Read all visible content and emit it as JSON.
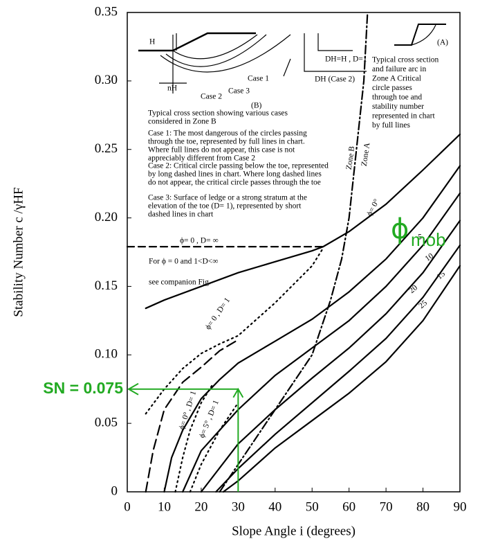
{
  "chart_data": {
    "type": "line",
    "x_label": "Slope Angle i (degrees)",
    "y_label": "Stability Number c /γHF",
    "xlim": [
      0,
      90
    ],
    "ylim": [
      0,
      0.35
    ],
    "xticks": [
      0,
      10,
      20,
      30,
      40,
      50,
      60,
      70,
      80,
      90
    ],
    "yticks": [
      0,
      0.05,
      {
        "value": 0.1,
        "label": "0.10"
      },
      0.15,
      {
        "value": 0.2,
        "label": "0.20"
      },
      0.25,
      {
        "value": 0.3,
        "label": "0.30"
      },
      0.35
    ],
    "grid": false,
    "series": [
      {
        "name": "ϕ= 0°",
        "color": "#000000",
        "dash": "solid",
        "x": [
          5,
          10,
          20,
          30,
          40,
          50,
          53,
          60,
          70,
          80,
          90
        ],
        "values": [
          0.134,
          0.14,
          0.15,
          0.16,
          0.168,
          0.176,
          0.179,
          0.19,
          0.21,
          0.235,
          0.261
        ]
      },
      {
        "name": "5",
        "color": "#000000",
        "dash": "solid",
        "x": [
          10,
          12,
          15,
          20,
          25,
          30,
          40,
          50,
          60,
          70,
          80,
          90
        ],
        "values": [
          0,
          0.025,
          0.045,
          0.068,
          0.082,
          0.094,
          0.11,
          0.126,
          0.146,
          0.17,
          0.2,
          0.238
        ]
      },
      {
        "name": "10",
        "color": "#000000",
        "dash": "solid",
        "x": [
          15,
          20,
          30,
          40,
          50,
          60,
          70,
          80,
          90
        ],
        "values": [
          0,
          0.03,
          0.06,
          0.085,
          0.105,
          0.125,
          0.15,
          0.18,
          0.218
        ]
      },
      {
        "name": "15",
        "color": "#000000",
        "dash": "solid",
        "x": [
          20,
          30,
          40,
          50,
          60,
          70,
          80,
          90
        ],
        "values": [
          0,
          0.035,
          0.06,
          0.083,
          0.105,
          0.13,
          0.16,
          0.198
        ]
      },
      {
        "name": "20",
        "color": "#000000",
        "dash": "solid",
        "x": [
          24,
          30,
          40,
          50,
          60,
          70,
          80,
          90
        ],
        "values": [
          0,
          0.017,
          0.042,
          0.065,
          0.088,
          0.112,
          0.142,
          0.18
        ]
      },
      {
        "name": "25",
        "color": "#000000",
        "dash": "solid",
        "x": [
          26,
          30,
          40,
          50,
          60,
          70,
          80,
          90
        ],
        "values": [
          0,
          0.008,
          0.032,
          0.052,
          0.072,
          0.095,
          0.125,
          0.165
        ]
      },
      {
        "color": "#000000",
        "dash": "dashed",
        "x": [
          0,
          53
        ],
        "values": [
          0.179,
          0.179
        ]
      },
      {
        "color": "#000000",
        "dash": "dotted",
        "x": [
          5,
          10,
          15,
          20,
          25,
          30,
          40,
          50,
          53
        ],
        "values": [
          0.057,
          0.075,
          0.09,
          0.101,
          0.108,
          0.114,
          0.138,
          0.165,
          0.178
        ]
      },
      {
        "color": "#000000",
        "dash": "longdash",
        "x": [
          5,
          7,
          10,
          15,
          20,
          25,
          30
        ],
        "values": [
          0,
          0.03,
          0.06,
          0.08,
          0.091,
          0.103,
          0.111
        ]
      },
      {
        "color": "#000000",
        "dash": "dotted",
        "x": [
          13,
          15,
          17,
          20,
          23
        ],
        "values": [
          0,
          0.025,
          0.045,
          0.065,
          0.078
        ]
      },
      {
        "color": "#000000",
        "dash": "dotted",
        "x": [
          17,
          20,
          25,
          30
        ],
        "values": [
          0,
          0.02,
          0.045,
          0.065
        ]
      },
      {
        "color": "#000000",
        "dash": "dashdot",
        "x": [
          25,
          30,
          40,
          50,
          55,
          58,
          60,
          62,
          64,
          65
        ],
        "values": [
          0,
          0.02,
          0.06,
          0.1,
          0.14,
          0.17,
          0.2,
          0.25,
          0.3,
          0.35
        ]
      }
    ],
    "marker": {
      "x": 30,
      "value": 0.075,
      "label": "SN = 0.075",
      "color": "#22aa22",
      "symbol": "ϕ",
      "subscript": "mob"
    },
    "annotations": [
      {
        "lines": [
          "(A)"
        ]
      },
      {
        "lines": [
          "Typical cross section",
          "and failure arc in",
          "Zone A Critical",
          "circle passes",
          "through toe and",
          "stability number",
          "represented in chart",
          "by full lines"
        ]
      },
      {
        "lines": [
          "H"
        ]
      },
      {
        "lines": [
          "nH"
        ]
      },
      {
        "lines": [
          "DH=H , D=1"
        ]
      },
      {
        "lines": [
          "DH (Case 2)"
        ]
      },
      {
        "lines": [
          "Case 1"
        ]
      },
      {
        "lines": [
          "Case 2"
        ]
      },
      {
        "lines": [
          "Case 3"
        ]
      },
      {
        "lines": [
          "(B)"
        ]
      },
      {
        "lines": [
          "Typical cross section showing various cases",
          "considered in Zone B"
        ]
      },
      {
        "lines": [
          "Case 1: The most dangerous of the circles passing",
          "through the toe, represented by full lines in chart.",
          "Where full lines do not appear, this case is not",
          "appreciably different from Case 2"
        ]
      },
      {
        "lines": [
          "Case 2: Critical circle passing below the toe, represented",
          "by long dashed lines in chart. Where long dashed lines",
          "do not appear, the critical circle passes through the toe"
        ]
      },
      {
        "lines": [
          "Case 3: Surface of ledge or a strong stratum at the",
          "elevation of the toe (D= 1), represented by short",
          "dashed lines in chart"
        ]
      },
      {
        "lines": [
          "ϕ= 0 , D= ∞"
        ]
      },
      {
        "lines": [
          "For ϕ = 0 and 1<D<∞"
        ]
      },
      {
        "lines": [
          "see companion Fig."
        ]
      },
      {
        "lines": [
          "ϕ= 0 , D= 1"
        ]
      },
      {
        "lines": [
          "ϕ= 0° , D= 1"
        ]
      },
      {
        "lines": [
          "ϕ= 5° , D= 1"
        ]
      },
      {
        "lines": [
          "Zone B"
        ]
      },
      {
        "lines": [
          "Zone A"
        ]
      }
    ]
  }
}
